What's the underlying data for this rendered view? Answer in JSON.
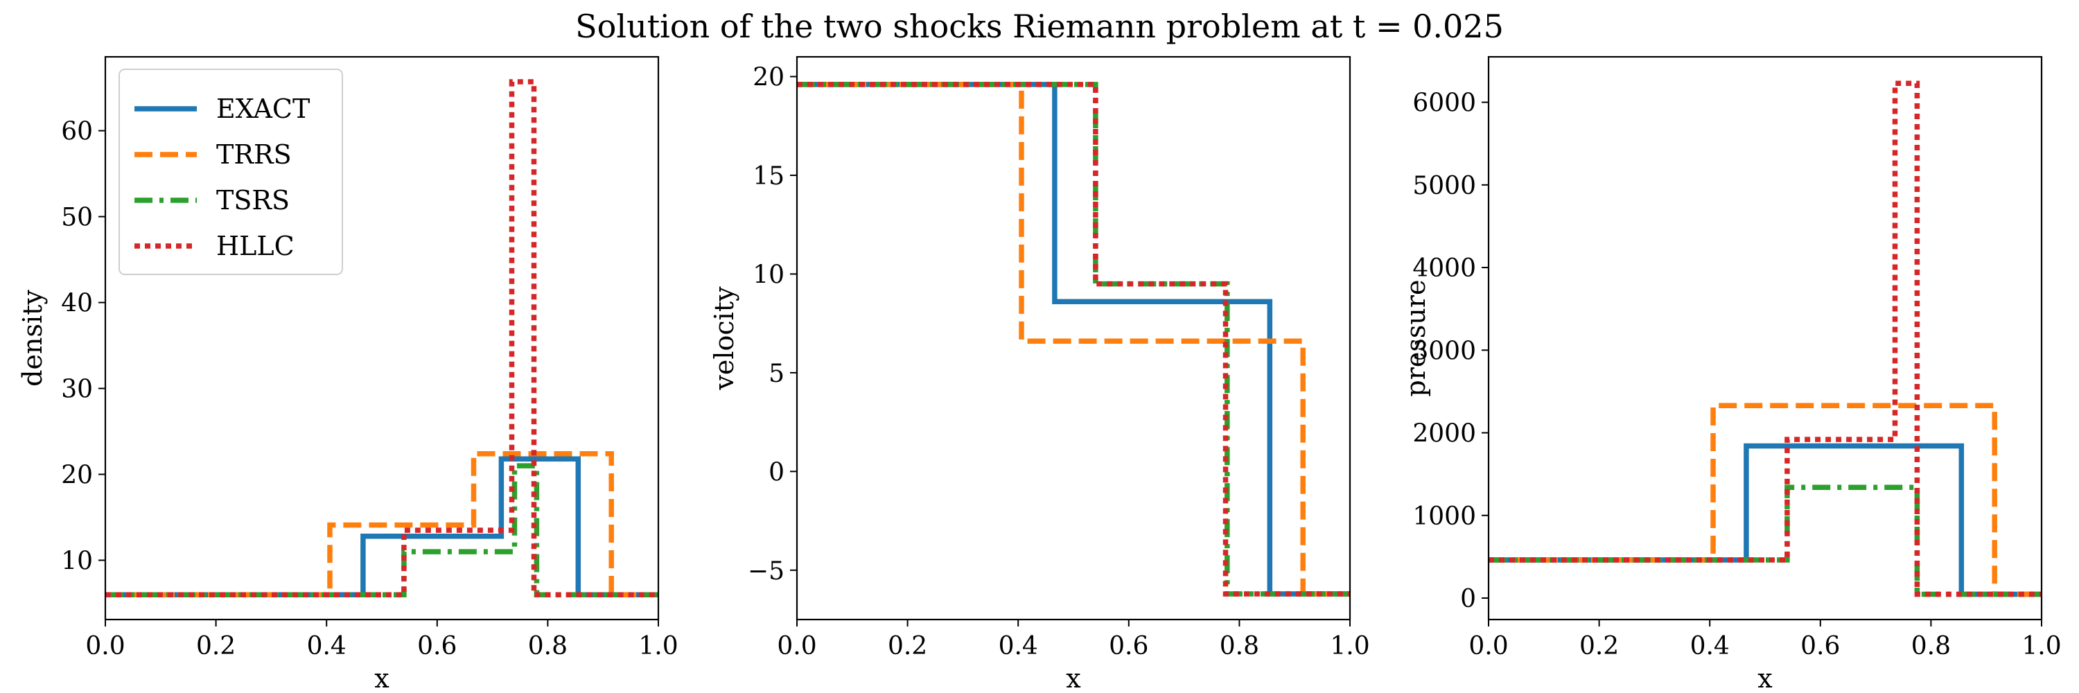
{
  "suptitle": "Solution of the two shocks Riemann problem at t = 0.025",
  "legend": {
    "placement": "upper-left of first panel",
    "entries": [
      "EXACT",
      "TRRS",
      "TSRS",
      "HLLC"
    ]
  },
  "styles": {
    "EXACT": {
      "color": "#1f77b4",
      "dash": "solid"
    },
    "TRRS": {
      "color": "#ff7f0e",
      "dash": "dashed"
    },
    "TSRS": {
      "color": "#2ca02c",
      "dash": "dashdot"
    },
    "HLLC": {
      "color": "#d62728",
      "dash": "dotted"
    }
  },
  "chart_data": [
    {
      "type": "line",
      "xlabel": "x",
      "ylabel": "density",
      "xlim": [
        0.0,
        1.0
      ],
      "ylim": [
        3.1,
        68.6
      ],
      "xticks": [
        "0.0",
        "0.2",
        "0.4",
        "0.6",
        "0.8",
        "1.0"
      ],
      "yticks": [
        "10",
        "20",
        "30",
        "40",
        "50",
        "60"
      ],
      "legend": true,
      "series": [
        {
          "name": "EXACT",
          "x": [
            0,
            0.466,
            0.466,
            0.716,
            0.716,
            0.855,
            0.855,
            1.0
          ],
          "y": [
            5.99,
            5.99,
            12.8,
            12.8,
            21.8,
            21.8,
            5.99,
            5.99
          ]
        },
        {
          "name": "TRRS",
          "x": [
            0,
            0.406,
            0.406,
            0.666,
            0.666,
            0.915,
            0.915,
            1.0
          ],
          "y": [
            5.99,
            5.99,
            14.1,
            14.1,
            22.4,
            22.4,
            5.99,
            5.99
          ]
        },
        {
          "name": "TSRS",
          "x": [
            0,
            0.54,
            0.54,
            0.74,
            0.74,
            0.78,
            0.78,
            1.0
          ],
          "y": [
            5.99,
            5.99,
            11.0,
            11.0,
            21.0,
            21.0,
            5.99,
            5.99
          ]
        },
        {
          "name": "HLLC",
          "x": [
            0,
            0.54,
            0.54,
            0.735,
            0.735,
            0.775,
            0.775,
            1.0
          ],
          "y": [
            5.99,
            5.99,
            13.5,
            13.5,
            65.7,
            65.7,
            5.99,
            5.99
          ]
        }
      ]
    },
    {
      "type": "line",
      "xlabel": "x",
      "ylabel": "velocity",
      "xlim": [
        0.0,
        1.0
      ],
      "ylim": [
        -7.5,
        21.0
      ],
      "xticks": [
        "0.0",
        "0.2",
        "0.4",
        "0.6",
        "0.8",
        "1.0"
      ],
      "yticks": [
        "−5",
        "0",
        "5",
        "10",
        "15",
        "20"
      ],
      "legend": false,
      "series": [
        {
          "name": "EXACT",
          "x": [
            0,
            0.466,
            0.466,
            0.855,
            0.855,
            1.0
          ],
          "y": [
            19.6,
            19.6,
            8.6,
            8.6,
            -6.2,
            -6.2
          ]
        },
        {
          "name": "TRRS",
          "x": [
            0,
            0.406,
            0.406,
            0.915,
            0.915,
            1.0
          ],
          "y": [
            19.6,
            19.6,
            6.6,
            6.6,
            -6.2,
            -6.2
          ]
        },
        {
          "name": "TSRS",
          "x": [
            0,
            0.54,
            0.54,
            0.778,
            0.778,
            1.0
          ],
          "y": [
            19.6,
            19.6,
            9.5,
            9.5,
            -6.2,
            -6.2
          ]
        },
        {
          "name": "HLLC",
          "x": [
            0,
            0.54,
            0.54,
            0.775,
            0.775,
            1.0
          ],
          "y": [
            19.6,
            19.6,
            9.5,
            9.5,
            -6.2,
            -6.2
          ]
        }
      ]
    },
    {
      "type": "line",
      "xlabel": "x",
      "ylabel": "pressure",
      "xlim": [
        0.0,
        1.0
      ],
      "ylim": [
        -260,
        6550
      ],
      "xticks": [
        "0.0",
        "0.2",
        "0.4",
        "0.6",
        "0.8",
        "1.0"
      ],
      "yticks": [
        "0",
        "1000",
        "2000",
        "3000",
        "4000",
        "5000",
        "6000"
      ],
      "legend": false,
      "series": [
        {
          "name": "EXACT",
          "x": [
            0,
            0.466,
            0.466,
            0.855,
            0.855,
            1.0
          ],
          "y": [
            460.9,
            460.9,
            1841,
            1841,
            46.1,
            46.1
          ]
        },
        {
          "name": "TRRS",
          "x": [
            0,
            0.406,
            0.406,
            0.915,
            0.915,
            1.0
          ],
          "y": [
            460.9,
            460.9,
            2330,
            2330,
            46.1,
            46.1
          ]
        },
        {
          "name": "TSRS",
          "x": [
            0,
            0.54,
            0.54,
            0.775,
            0.775,
            1.0
          ],
          "y": [
            460.9,
            460.9,
            1340,
            1340,
            46.1,
            46.1
          ]
        },
        {
          "name": "HLLC",
          "x": [
            0,
            0.54,
            0.54,
            0.735,
            0.735,
            0.775,
            0.775,
            1.0
          ],
          "y": [
            460.9,
            460.9,
            1920,
            1920,
            6230,
            6230,
            46.1,
            46.1
          ]
        }
      ]
    }
  ]
}
